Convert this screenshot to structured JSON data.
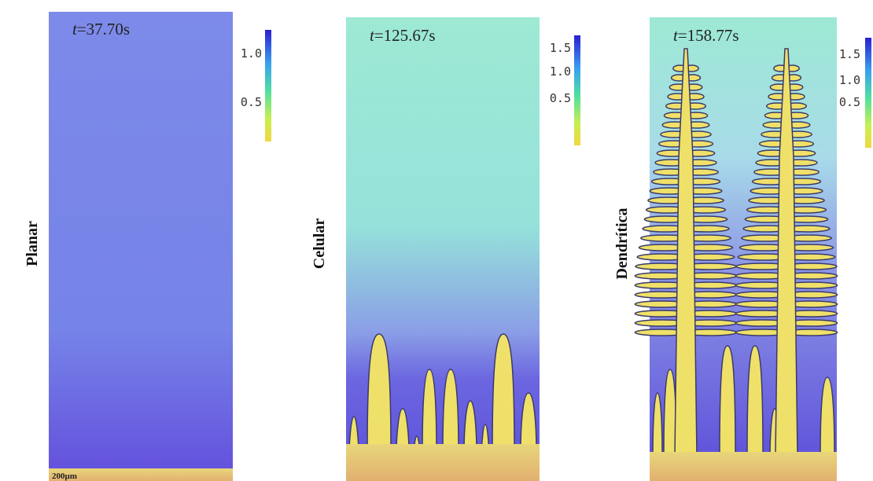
{
  "panels": [
    {
      "label": "Planar",
      "time": {
        "symbol": "t",
        "text": "=37.70s"
      },
      "colorbar_ticks": [
        "1.0",
        "0.5"
      ]
    },
    {
      "label": "Celular",
      "time": {
        "symbol": "t",
        "text": "=125.67s"
      },
      "colorbar_ticks": [
        "1.5",
        "1.0",
        "0.5"
      ]
    },
    {
      "label": "Dendrítica",
      "time": {
        "symbol": "t",
        "text": "=158.77s"
      },
      "colorbar_ticks": [
        "1.5",
        "1.0",
        "0.5"
      ]
    }
  ],
  "scale_bar": "200μm"
}
